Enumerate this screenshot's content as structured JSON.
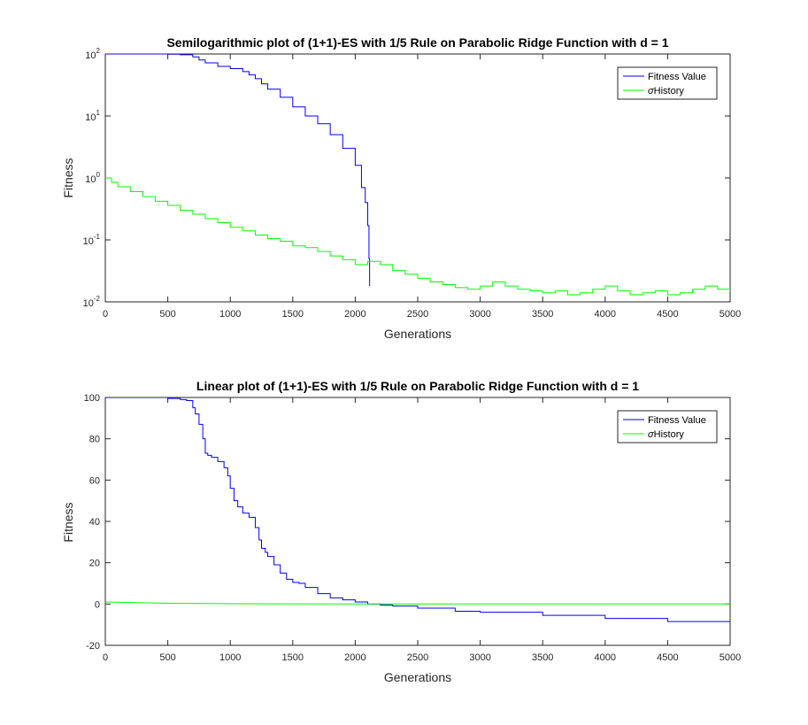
{
  "chart_data": [
    {
      "type": "line",
      "title": "Semilogarithmic plot of (1+1)-ES with 1/5 Rule on Parabolic Ridge Function with d = 1",
      "xlabel": "Generations",
      "ylabel": "Fitness",
      "xscale": "linear",
      "yscale": "log",
      "xlim": [
        0,
        5000
      ],
      "ylim": [
        0.01,
        100
      ],
      "xticks": [
        0,
        500,
        1000,
        1500,
        2000,
        2500,
        3000,
        3500,
        4000,
        4500,
        5000
      ],
      "xtick_labels": [
        "0",
        "500",
        "1000",
        "1500",
        "2000",
        "2500",
        "3000",
        "3500",
        "4000",
        "4500",
        "5000"
      ],
      "yticks": [
        0.01,
        0.1,
        1,
        10,
        100
      ],
      "ytick_labels": [
        {
          "base": "10",
          "exp": "-2"
        },
        {
          "base": "10",
          "exp": "-1"
        },
        {
          "base": "10",
          "exp": "0"
        },
        {
          "base": "10",
          "exp": "1"
        },
        {
          "base": "10",
          "exp": "2"
        }
      ],
      "grid": false,
      "legend": {
        "location": "top-right"
      },
      "series": [
        {
          "name": "Fitness Value",
          "color": "#0000ff",
          "step": "post",
          "x": [
            0,
            500,
            600,
            700,
            750,
            800,
            900,
            1000,
            1100,
            1150,
            1200,
            1250,
            1300,
            1400,
            1500,
            1600,
            1700,
            1800,
            1900,
            2000,
            2050,
            2080,
            2100,
            2110,
            2115
          ],
          "y": [
            100,
            99,
            97,
            90,
            80,
            72,
            63,
            58,
            52,
            46,
            40,
            33,
            27,
            20,
            14,
            10,
            7.5,
            5,
            3,
            1.6,
            0.7,
            0.4,
            0.17,
            0.05,
            0.018
          ]
        },
        {
          "name": "σHistory",
          "color": "#00ff00",
          "step": "post",
          "x": [
            0,
            50,
            100,
            200,
            300,
            400,
            500,
            600,
            700,
            800,
            900,
            1000,
            1100,
            1200,
            1300,
            1400,
            1500,
            1600,
            1700,
            1800,
            1900,
            2000,
            2100,
            2200,
            2300,
            2400,
            2500,
            2600,
            2700,
            2800,
            2900,
            3000,
            3100,
            3200,
            3300,
            3400,
            3500,
            3600,
            3700,
            3800,
            3900,
            4000,
            4100,
            4200,
            4300,
            4400,
            4500,
            4600,
            4700,
            4800,
            4900,
            5000
          ],
          "y": [
            1.0,
            0.85,
            0.72,
            0.6,
            0.5,
            0.42,
            0.36,
            0.3,
            0.26,
            0.22,
            0.19,
            0.16,
            0.14,
            0.12,
            0.105,
            0.095,
            0.08,
            0.075,
            0.065,
            0.055,
            0.048,
            0.04,
            0.045,
            0.04,
            0.032,
            0.028,
            0.024,
            0.021,
            0.019,
            0.017,
            0.016,
            0.018,
            0.021,
            0.018,
            0.016,
            0.015,
            0.014,
            0.015,
            0.013,
            0.014,
            0.016,
            0.018,
            0.015,
            0.013,
            0.014,
            0.015,
            0.013,
            0.014,
            0.016,
            0.018,
            0.016,
            0.015
          ]
        }
      ]
    },
    {
      "type": "line",
      "title": "Linear plot of (1+1)-ES with 1/5 Rule on Parabolic Ridge Function with d = 1",
      "xlabel": "Generations",
      "ylabel": "Fitness",
      "xscale": "linear",
      "yscale": "linear",
      "xlim": [
        0,
        5000
      ],
      "ylim": [
        -20,
        100
      ],
      "xticks": [
        0,
        500,
        1000,
        1500,
        2000,
        2500,
        3000,
        3500,
        4000,
        4500,
        5000
      ],
      "xtick_labels": [
        "0",
        "500",
        "1000",
        "1500",
        "2000",
        "2500",
        "3000",
        "3500",
        "4000",
        "4500",
        "5000"
      ],
      "yticks": [
        -20,
        0,
        20,
        40,
        60,
        80,
        100
      ],
      "ytick_labels": [
        "-20",
        "0",
        "20",
        "40",
        "60",
        "80",
        "100"
      ],
      "grid": false,
      "legend": {
        "location": "top-right"
      },
      "series": [
        {
          "name": "Fitness Value",
          "color": "#0000ff",
          "step": "post",
          "x": [
            0,
            500,
            600,
            650,
            700,
            720,
            750,
            780,
            800,
            820,
            850,
            900,
            950,
            980,
            1000,
            1030,
            1060,
            1100,
            1150,
            1200,
            1230,
            1250,
            1280,
            1300,
            1350,
            1400,
            1450,
            1500,
            1550,
            1600,
            1700,
            1800,
            1900,
            2000,
            2100,
            2200,
            2300,
            2500,
            2800,
            3000,
            3500,
            4000,
            4500,
            5000
          ],
          "y": [
            100,
            99.5,
            99,
            98.5,
            95,
            92,
            87,
            80,
            73,
            72,
            71,
            69,
            66,
            62,
            56,
            50,
            47,
            44,
            42,
            37,
            31,
            27,
            25,
            23,
            19,
            15,
            12,
            10.5,
            10,
            8,
            5,
            3,
            2,
            1,
            0,
            -0.5,
            -1,
            -2,
            -3.5,
            -4,
            -5.5,
            -7,
            -8.5,
            -10
          ]
        },
        {
          "name": "σHistory",
          "color": "#00ff00",
          "step": "none",
          "x": [
            0,
            500,
            1000,
            1500,
            2000,
            2500,
            3000,
            5000
          ],
          "y": [
            1.0,
            0.36,
            0.16,
            0.08,
            0.04,
            0.024,
            0.016,
            0.015
          ]
        }
      ]
    }
  ]
}
